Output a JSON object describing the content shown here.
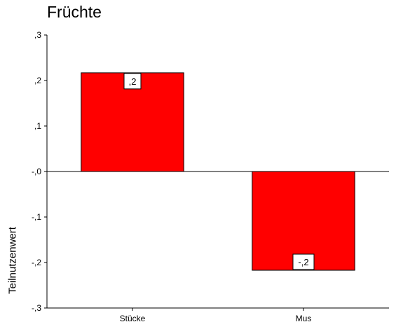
{
  "chart_data": {
    "type": "bar",
    "title": "Früchte",
    "xlabel": "",
    "ylabel": "Teilnutzenwert",
    "categories": [
      "Stücke",
      "Mus"
    ],
    "values": [
      0.217,
      -0.217
    ],
    "data_labels": [
      ",2",
      "-,2"
    ],
    "ylim": [
      -0.3,
      0.3
    ],
    "yticks": [
      0.3,
      0.2,
      0.1,
      0.0,
      -0.1,
      -0.2,
      -0.3
    ],
    "ytick_labels": [
      ",3",
      ",2",
      ",1",
      "-,0",
      "-,1",
      "-,2",
      "-,3"
    ],
    "bar_color": "#ff0000",
    "grid": false,
    "zero_line": true
  }
}
